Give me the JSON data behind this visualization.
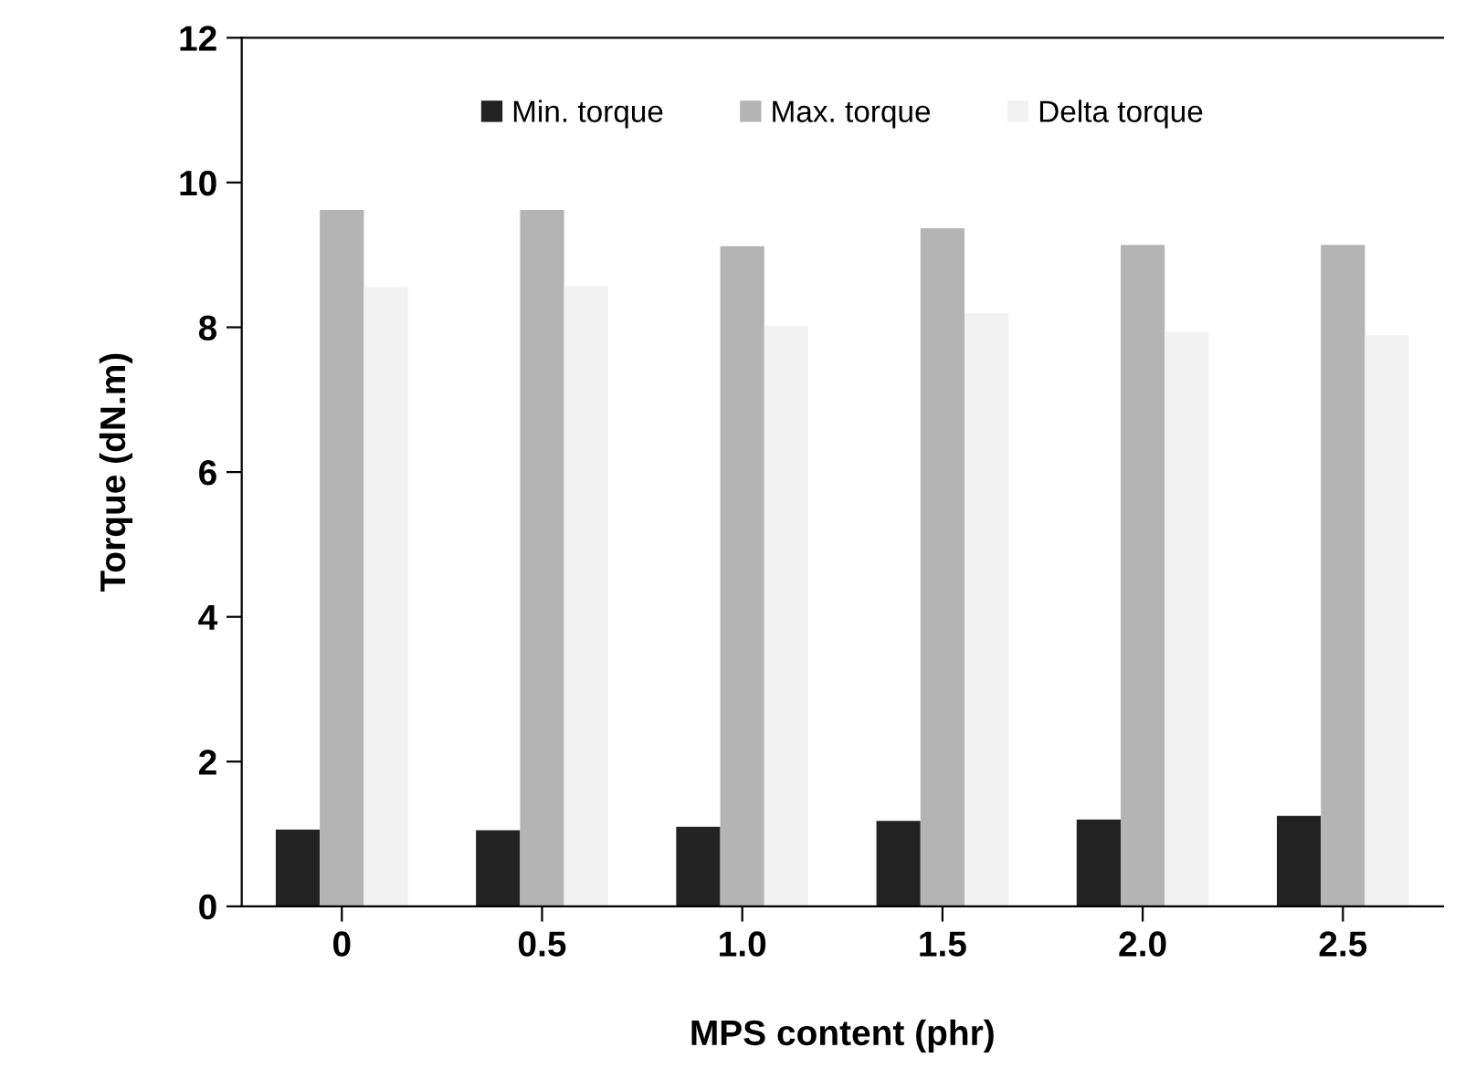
{
  "chart_data": {
    "type": "bar",
    "xlabel": "MPS content (phr)",
    "ylabel": "Torque (dN.m)",
    "categories": [
      "0",
      "0.5",
      "1.0",
      "1.5",
      "2.0",
      "2.5"
    ],
    "series": [
      {
        "name": "Min. torque",
        "color": "#222222",
        "values": [
          1.06,
          1.05,
          1.1,
          1.18,
          1.2,
          1.25
        ]
      },
      {
        "name": "Max. torque",
        "color": "#b4b4b4",
        "values": [
          9.62,
          9.62,
          9.12,
          9.37,
          9.14,
          9.14
        ]
      },
      {
        "name": "Delta torque",
        "color": "#f2f2f2",
        "values": [
          8.56,
          8.57,
          8.02,
          8.19,
          7.94,
          7.89
        ]
      }
    ],
    "ylim": [
      0,
      12
    ],
    "yticks": [
      0,
      2,
      4,
      6,
      8,
      10,
      12
    ],
    "legend": "top",
    "grid": false
  }
}
